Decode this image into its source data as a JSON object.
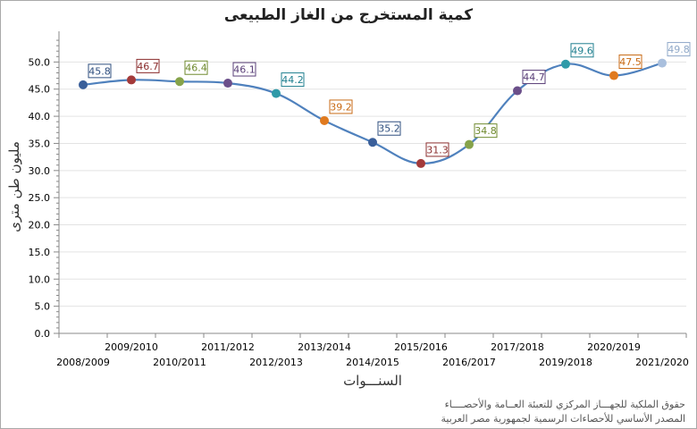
{
  "chart_data": {
    "type": "line",
    "title": "كمية المستخرج من الغاز الطبيعى",
    "xlabel": "السنـــوات",
    "ylabel": "مليون طن مترى",
    "categories": [
      "2008/2009",
      "2009/2010",
      "2010/2011",
      "2011/2012",
      "2012/2013",
      "2013/2014",
      "2014/2015",
      "2015/2016",
      "2016/2017",
      "2017/2018",
      "2019/2018",
      "2020/2019",
      "2021/2020"
    ],
    "series": [
      {
        "values": [
          45.8,
          46.7,
          46.4,
          46.1,
          44.2,
          39.2,
          35.2,
          31.3,
          34.8,
          44.7,
          49.6,
          47.5,
          49.8
        ],
        "data_labels": [
          "45.8",
          "46.7",
          "46.4",
          "46.1",
          "44.2",
          "39.2",
          "35.2",
          "31.3",
          "34.8",
          "44.7",
          "49.6",
          "47.5",
          "49.8"
        ]
      }
    ],
    "point_colors": [
      "#3a5f9a",
      "#a33a3a",
      "#86a34a",
      "#6b4f8a",
      "#2f9aa8",
      "#e07a1f",
      "#3a5f9a",
      "#a33a3a",
      "#86a34a",
      "#6b4f8a",
      "#2f9aa8",
      "#e07a1f",
      "#a9bfdd"
    ],
    "label_colors": [
      "#2f4f7f",
      "#8b2e2e",
      "#6f8a2e",
      "#5a3f78",
      "#1f7f8f",
      "#c86a14",
      "#2f4f7f",
      "#8b2e2e",
      "#6f8a2e",
      "#5a3f78",
      "#1f7f8f",
      "#c86a14",
      "#8fa8c8"
    ],
    "line_color": "#4f81bd",
    "ylim": [
      0,
      55
    ],
    "yticks": [
      "0.0",
      "5.0",
      "10.0",
      "15.0",
      "20.0",
      "25.0",
      "30.0",
      "35.0",
      "40.0",
      "45.0",
      "50.0"
    ],
    "grid": true,
    "legend": false
  },
  "footnotes": {
    "line1": "حقوق الملكية للجهـــاز المركزي للتعبئة العــامة والأحصــــاء",
    "line2": "المصدر الأساسي للأحصاءات الرسمية لجمهورية مصر العربية"
  }
}
